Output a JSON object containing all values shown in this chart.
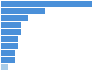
{
  "values": [
    27,
    13,
    8,
    6,
    6,
    5,
    5,
    4,
    4,
    2
  ],
  "bar_color": "#4a90d9",
  "background_color": "#ffffff",
  "xlim": [
    0,
    29
  ],
  "bar_height": 0.82,
  "bottom_bar_color": "#a8cce8"
}
